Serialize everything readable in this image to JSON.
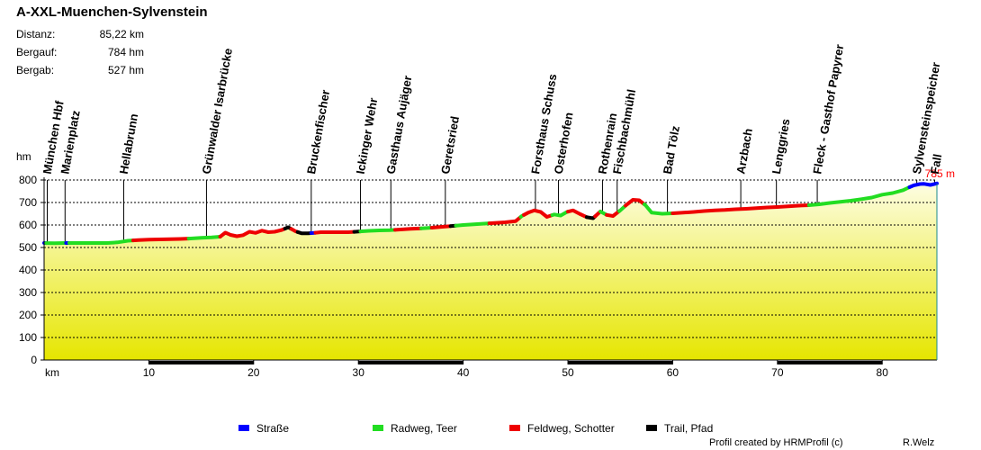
{
  "header": {
    "title": "A-XXL-Muenchen-Sylvenstein",
    "stats": [
      {
        "label": "Distanz:",
        "value": "85,22 km"
      },
      {
        "label": "Bergauf:",
        "value": "784 hm"
      },
      {
        "label": "Bergab:",
        "value": "527 hm"
      }
    ]
  },
  "footer": {
    "credit": "Profil created by HRMProfil (c)",
    "author": "R.Welz"
  },
  "colors": {
    "strasse": "#0000ff",
    "radweg": "#22dd22",
    "feldweg": "#ee0000",
    "trail": "#000000",
    "fill_top": "#fdfde2",
    "fill_bottom": "#e6e600",
    "end_marker": "#ff0000"
  },
  "chart_data": {
    "type": "area",
    "title": "A-XXL-Muenchen-Sylvenstein",
    "xlabel": "km",
    "ylabel": "hm",
    "xlim": [
      0,
      85.22
    ],
    "ylim": [
      0,
      800
    ],
    "x_ticks": [
      10,
      20,
      30,
      40,
      50,
      60,
      70,
      80
    ],
    "y_ticks": [
      0,
      100,
      200,
      300,
      400,
      500,
      600,
      700,
      800
    ],
    "grid": true,
    "end_label": "785 m",
    "profile": [
      [
        0,
        520
      ],
      [
        1,
        519
      ],
      [
        2,
        520
      ],
      [
        3,
        520
      ],
      [
        4,
        520
      ],
      [
        5,
        520
      ],
      [
        6,
        520
      ],
      [
        7,
        523
      ],
      [
        8,
        530
      ],
      [
        9,
        533
      ],
      [
        10,
        535
      ],
      [
        11,
        536
      ],
      [
        12,
        537
      ],
      [
        13,
        538
      ],
      [
        14,
        540
      ],
      [
        15,
        543
      ],
      [
        16,
        545
      ],
      [
        16.8,
        548
      ],
      [
        17.3,
        566
      ],
      [
        17.8,
        556
      ],
      [
        18.4,
        550
      ],
      [
        19,
        555
      ],
      [
        19.6,
        570
      ],
      [
        20.2,
        565
      ],
      [
        20.8,
        575
      ],
      [
        21.4,
        568
      ],
      [
        22,
        570
      ],
      [
        22.7,
        578
      ],
      [
        23.3,
        590
      ],
      [
        24,
        572
      ],
      [
        24.6,
        563
      ],
      [
        25.2,
        563
      ],
      [
        25.8,
        565
      ],
      [
        26.4,
        568
      ],
      [
        27,
        568
      ],
      [
        28,
        568
      ],
      [
        29,
        568
      ],
      [
        30,
        571
      ],
      [
        31,
        574
      ],
      [
        32,
        576
      ],
      [
        33,
        577
      ],
      [
        34,
        580
      ],
      [
        35,
        583
      ],
      [
        36,
        585
      ],
      [
        37,
        588
      ],
      [
        38,
        592
      ],
      [
        39,
        596
      ],
      [
        40,
        600
      ],
      [
        41,
        603
      ],
      [
        42,
        606
      ],
      [
        43,
        609
      ],
      [
        44,
        612
      ],
      [
        45,
        617
      ],
      [
        45.6,
        640
      ],
      [
        46.2,
        655
      ],
      [
        46.8,
        665
      ],
      [
        47.4,
        658
      ],
      [
        48,
        636
      ],
      [
        48.7,
        647
      ],
      [
        49.3,
        642
      ],
      [
        49.9,
        658
      ],
      [
        50.5,
        665
      ],
      [
        51.1,
        650
      ],
      [
        51.8,
        635
      ],
      [
        52.4,
        630
      ],
      [
        53.1,
        660
      ],
      [
        53.7,
        645
      ],
      [
        54.3,
        640
      ],
      [
        55,
        665
      ],
      [
        55.6,
        690
      ],
      [
        56.2,
        712
      ],
      [
        56.8,
        710
      ],
      [
        57.4,
        688
      ],
      [
        58,
        655
      ],
      [
        59,
        650
      ],
      [
        60,
        652
      ],
      [
        61,
        655
      ],
      [
        62,
        658
      ],
      [
        63,
        662
      ],
      [
        64,
        665
      ],
      [
        65,
        667
      ],
      [
        66,
        670
      ],
      [
        67,
        672
      ],
      [
        68,
        675
      ],
      [
        69,
        678
      ],
      [
        70,
        680
      ],
      [
        71,
        683
      ],
      [
        72,
        686
      ],
      [
        73,
        688
      ],
      [
        74,
        692
      ],
      [
        75,
        698
      ],
      [
        76,
        703
      ],
      [
        77,
        708
      ],
      [
        78,
        715
      ],
      [
        79,
        722
      ],
      [
        80,
        735
      ],
      [
        81,
        742
      ],
      [
        82,
        755
      ],
      [
        82.6,
        768
      ],
      [
        83,
        776
      ],
      [
        83.6,
        782
      ],
      [
        84,
        783
      ],
      [
        84.6,
        778
      ],
      [
        85.22,
        785
      ]
    ],
    "surface_segments": [
      {
        "from": 0,
        "to": 0.2,
        "type": "strasse"
      },
      {
        "from": 0.2,
        "to": 2.1,
        "type": "radweg"
      },
      {
        "from": 2.1,
        "to": 2.4,
        "type": "strasse"
      },
      {
        "from": 2.4,
        "to": 8.5,
        "type": "radweg"
      },
      {
        "from": 8.5,
        "to": 13.8,
        "type": "feldweg"
      },
      {
        "from": 13.8,
        "to": 16.8,
        "type": "radweg"
      },
      {
        "from": 16.8,
        "to": 23,
        "type": "feldweg"
      },
      {
        "from": 23,
        "to": 23.6,
        "type": "trail"
      },
      {
        "from": 23.6,
        "to": 24.2,
        "type": "feldweg"
      },
      {
        "from": 24.2,
        "to": 25.5,
        "type": "trail"
      },
      {
        "from": 25.5,
        "to": 25.9,
        "type": "strasse"
      },
      {
        "from": 25.9,
        "to": 29.6,
        "type": "feldweg"
      },
      {
        "from": 29.6,
        "to": 30.2,
        "type": "trail"
      },
      {
        "from": 30.2,
        "to": 33.5,
        "type": "radweg"
      },
      {
        "from": 33.5,
        "to": 36,
        "type": "feldweg"
      },
      {
        "from": 36,
        "to": 37,
        "type": "radweg"
      },
      {
        "from": 37,
        "to": 38.8,
        "type": "feldweg"
      },
      {
        "from": 38.8,
        "to": 39.3,
        "type": "trail"
      },
      {
        "from": 39.3,
        "to": 42.5,
        "type": "radweg"
      },
      {
        "from": 42.5,
        "to": 45.5,
        "type": "feldweg"
      },
      {
        "from": 45.5,
        "to": 45.8,
        "type": "radweg"
      },
      {
        "from": 45.8,
        "to": 48.5,
        "type": "feldweg"
      },
      {
        "from": 48.5,
        "to": 50,
        "type": "radweg"
      },
      {
        "from": 50,
        "to": 51.8,
        "type": "feldweg"
      },
      {
        "from": 51.8,
        "to": 52.6,
        "type": "trail"
      },
      {
        "from": 52.6,
        "to": 53.1,
        "type": "feldweg"
      },
      {
        "from": 53.1,
        "to": 53.7,
        "type": "radweg"
      },
      {
        "from": 53.7,
        "to": 54.9,
        "type": "feldweg"
      },
      {
        "from": 54.9,
        "to": 55.5,
        "type": "radweg"
      },
      {
        "from": 55.5,
        "to": 57.3,
        "type": "feldweg"
      },
      {
        "from": 57.3,
        "to": 60,
        "type": "radweg"
      },
      {
        "from": 60,
        "to": 73,
        "type": "feldweg"
      },
      {
        "from": 73,
        "to": 82.6,
        "type": "radweg"
      },
      {
        "from": 82.6,
        "to": 85.22,
        "type": "strasse"
      }
    ],
    "waypoints": [
      {
        "name": "München Hbf",
        "km": 0.3
      },
      {
        "name": "Marienplatz",
        "km": 2
      },
      {
        "name": "Hellabrunn",
        "km": 7.6
      },
      {
        "name": "Grünwalder Isarbrücke",
        "km": 15.5
      },
      {
        "name": "Bruckenfischer",
        "km": 25.5
      },
      {
        "name": "Ickinger Wehr",
        "km": 30.2
      },
      {
        "name": "Gasthaus Aujäger",
        "km": 33.1
      },
      {
        "name": "Geretsried",
        "km": 38.3
      },
      {
        "name": "Forsthaus Schuss",
        "km": 46.9
      },
      {
        "name": "Osterhofen",
        "km": 49.1
      },
      {
        "name": "Rothenrain",
        "km": 53.3
      },
      {
        "name": "Fischbachmühl",
        "km": 54.7
      },
      {
        "name": "Bad Tölz",
        "km": 59.5
      },
      {
        "name": "Arzbach",
        "km": 66.5
      },
      {
        "name": "Lenggries",
        "km": 69.9
      },
      {
        "name": "Fleck - Gasthof Papyrer",
        "km": 73.8
      },
      {
        "name": "Sylvensteinspeicher",
        "km": 83.3
      },
      {
        "name": "Fall",
        "km": 85
      }
    ],
    "legend_position": "bottom",
    "legend": [
      {
        "key": "strasse",
        "label": "Straße"
      },
      {
        "key": "radweg",
        "label": "Radweg, Teer"
      },
      {
        "key": "feldweg",
        "label": "Feldweg, Schotter"
      },
      {
        "key": "trail",
        "label": "Trail, Pfad"
      }
    ]
  }
}
